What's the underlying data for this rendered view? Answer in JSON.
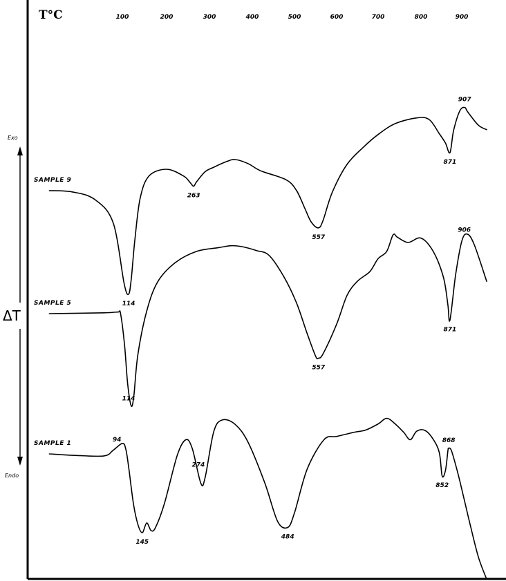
{
  "chart_data": {
    "type": "line",
    "x_unit": "T°C",
    "x_ticks": [
      100,
      200,
      300,
      400,
      500,
      600,
      700,
      800,
      900
    ],
    "y_axis": {
      "label": "ΔT",
      "top": "Exo",
      "bottom": "Endo"
    },
    "series": [
      {
        "name": "SAMPLE 9",
        "points": [
          [
            20,
            0.0
          ],
          [
            45,
            0.3
          ],
          [
            70,
            2.2
          ],
          [
            90,
            8.0
          ],
          [
            104,
            23.0
          ],
          [
            114,
            25.6
          ],
          [
            120,
            22.0
          ],
          [
            128,
            12.5
          ],
          [
            140,
            2.0
          ],
          [
            160,
            -3.6
          ],
          [
            200,
            -5.3
          ],
          [
            240,
            -3.6
          ],
          [
            255,
            -2.0
          ],
          [
            263,
            -1.1
          ],
          [
            270,
            -2.2
          ],
          [
            290,
            -4.7
          ],
          [
            310,
            -5.8
          ],
          [
            340,
            -7.2
          ],
          [
            360,
            -7.7
          ],
          [
            390,
            -6.7
          ],
          [
            420,
            -4.9
          ],
          [
            480,
            -2.7
          ],
          [
            505,
            0.0
          ],
          [
            525,
            4.5
          ],
          [
            540,
            7.8
          ],
          [
            557,
            9.2
          ],
          [
            568,
            7.3
          ],
          [
            590,
            0.3
          ],
          [
            625,
            -6.5
          ],
          [
            665,
            -10.8
          ],
          [
            700,
            -13.9
          ],
          [
            740,
            -16.6
          ],
          [
            790,
            -18.0
          ],
          [
            820,
            -17.6
          ],
          [
            845,
            -14.1
          ],
          [
            860,
            -11.8
          ],
          [
            871,
            -9.4
          ],
          [
            880,
            -14.9
          ],
          [
            895,
            -19.7
          ],
          [
            907,
            -20.6
          ],
          [
            915,
            -19.4
          ],
          [
            940,
            -16.2
          ],
          [
            960,
            -15.1
          ]
        ],
        "peaks": [
          {
            "label": "114",
            "x": 114
          },
          {
            "label": "263",
            "x": 263
          },
          {
            "label": "557",
            "x": 557
          },
          {
            "label": "871",
            "x": 871
          },
          {
            "label": "907",
            "x": 907
          }
        ]
      },
      {
        "name": "SAMPLE 5",
        "points": [
          [
            20,
            0.0
          ],
          [
            80,
            -0.2
          ],
          [
            95,
            -0.4
          ],
          [
            98,
            0.0
          ],
          [
            105,
            7.8
          ],
          [
            112,
            17.4
          ],
          [
            120,
            22.8
          ],
          [
            126,
            20.4
          ],
          [
            135,
            10.2
          ],
          [
            155,
            -0.6
          ],
          [
            180,
            -7.9
          ],
          [
            220,
            -12.6
          ],
          [
            270,
            -15.4
          ],
          [
            320,
            -16.3
          ],
          [
            350,
            -16.8
          ],
          [
            375,
            -16.6
          ],
          [
            410,
            -15.6
          ],
          [
            440,
            -14.4
          ],
          [
            475,
            -9.1
          ],
          [
            505,
            -2.6
          ],
          [
            530,
            4.9
          ],
          [
            550,
            10.5
          ],
          [
            557,
            11.0
          ],
          [
            568,
            9.9
          ],
          [
            600,
            2.6
          ],
          [
            625,
            -4.5
          ],
          [
            650,
            -8.0
          ],
          [
            680,
            -10.4
          ],
          [
            700,
            -13.6
          ],
          [
            720,
            -15.4
          ],
          [
            735,
            -19.5
          ],
          [
            745,
            -18.9
          ],
          [
            770,
            -17.6
          ],
          [
            800,
            -18.7
          ],
          [
            830,
            -15.4
          ],
          [
            855,
            -9.0
          ],
          [
            866,
            -2.2
          ],
          [
            871,
            1.6
          ],
          [
            885,
            -9.6
          ],
          [
            900,
            -17.9
          ],
          [
            913,
            -19.7
          ],
          [
            930,
            -17.1
          ],
          [
            960,
            -8.0
          ]
        ],
        "peaks": [
          {
            "label": "114",
            "x": 114
          },
          {
            "label": "557",
            "x": 557
          },
          {
            "label": "871",
            "x": 871
          },
          {
            "label": "906",
            "x": 906
          }
        ]
      },
      {
        "name": "SAMPLE 1",
        "points": [
          [
            20,
            0.0
          ],
          [
            50,
            0.4
          ],
          [
            80,
            0.5
          ],
          [
            90,
            -0.9
          ],
          [
            100,
            -2.6
          ],
          [
            108,
            -1.1
          ],
          [
            115,
            3.9
          ],
          [
            125,
            12.3
          ],
          [
            135,
            17.4
          ],
          [
            145,
            19.5
          ],
          [
            155,
            17.1
          ],
          [
            165,
            19.0
          ],
          [
            175,
            18.2
          ],
          [
            195,
            12.3
          ],
          [
            225,
            0.3
          ],
          [
            245,
            -3.5
          ],
          [
            260,
            -1.3
          ],
          [
            280,
            7.3
          ],
          [
            290,
            5.8
          ],
          [
            310,
            -5.5
          ],
          [
            330,
            -8.4
          ],
          [
            360,
            -7.3
          ],
          [
            390,
            -2.9
          ],
          [
            430,
            7.3
          ],
          [
            460,
            16.7
          ],
          [
            484,
            18.2
          ],
          [
            500,
            14.6
          ],
          [
            530,
            3.8
          ],
          [
            570,
            -3.5
          ],
          [
            600,
            -4.3
          ],
          [
            640,
            -5.3
          ],
          [
            670,
            -5.9
          ],
          [
            700,
            -7.4
          ],
          [
            720,
            -8.8
          ],
          [
            740,
            -7.4
          ],
          [
            760,
            -5.3
          ],
          [
            775,
            -3.5
          ],
          [
            790,
            -5.6
          ],
          [
            810,
            -5.8
          ],
          [
            830,
            -3.6
          ],
          [
            845,
            -0.3
          ],
          [
            852,
            5.5
          ],
          [
            860,
            4.1
          ],
          [
            866,
            -0.7
          ],
          [
            868,
            -1.4
          ],
          [
            875,
            -0.7
          ],
          [
            890,
            4.6
          ],
          [
            905,
            10.9
          ],
          [
            920,
            17.4
          ],
          [
            940,
            25.5
          ],
          [
            960,
            31.0
          ]
        ],
        "peaks": [
          {
            "label": "94",
            "x": 94
          },
          {
            "label": "145",
            "x": 145
          },
          {
            "label": "274",
            "x": 274
          },
          {
            "label": "484",
            "x": 484
          },
          {
            "label": "852",
            "x": 852
          },
          {
            "label": "868",
            "x": 868
          }
        ]
      }
    ]
  }
}
